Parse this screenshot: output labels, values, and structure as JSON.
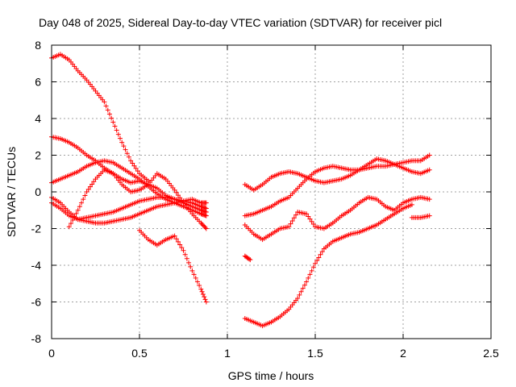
{
  "chart_data": {
    "type": "scatter",
    "title": "Day 048 of 2025, Sidereal Day-to-day VTEC variation (SDTVAR) for receiver picl",
    "xlabel": "GPS time / hours",
    "ylabel": "SDTVAR / TECUs",
    "xlim": [
      0,
      2.5
    ],
    "ylim": [
      -8,
      8
    ],
    "xticks": [
      0,
      0.5,
      1,
      1.5,
      2,
      2.5
    ],
    "xtick_labels": [
      "0",
      "0.5",
      "1",
      "1.5",
      "2",
      "2.5"
    ],
    "yticks": [
      -8,
      -6,
      -4,
      -2,
      0,
      2,
      4,
      6,
      8
    ],
    "ytick_labels": [
      "-8",
      "-6",
      "-4",
      "-2",
      "0",
      "2",
      "4",
      "6",
      "8"
    ],
    "grid": true,
    "marker": "plus",
    "marker_color": "#ff0000",
    "series": [
      {
        "name": "s1",
        "x": [
          0.0,
          0.05,
          0.1,
          0.15,
          0.2,
          0.25,
          0.3,
          0.35,
          0.4,
          0.45,
          0.5,
          0.55
        ],
        "y": [
          7.3,
          7.5,
          7.2,
          6.6,
          6.1,
          5.5,
          4.9,
          3.8,
          2.7,
          1.7,
          1.0,
          0.6
        ]
      },
      {
        "name": "s2",
        "x": [
          0.0,
          0.05,
          0.1,
          0.15,
          0.2,
          0.25,
          0.3,
          0.35,
          0.4,
          0.45,
          0.5,
          0.55,
          0.6,
          0.65,
          0.7,
          0.75,
          0.8,
          0.85,
          0.88
        ],
        "y": [
          3.0,
          2.9,
          2.7,
          2.4,
          2.0,
          1.7,
          1.3,
          1.0,
          0.7,
          0.5,
          0.6,
          0.4,
          0.2,
          -0.2,
          -0.4,
          -0.6,
          -0.8,
          -1.0,
          -1.1
        ]
      },
      {
        "name": "s3",
        "x": [
          0.0,
          0.05,
          0.1,
          0.15,
          0.2,
          0.25,
          0.3,
          0.35,
          0.4,
          0.45,
          0.5,
          0.55,
          0.6,
          0.65,
          0.7,
          0.75,
          0.8,
          0.85,
          0.88
        ],
        "y": [
          0.5,
          0.7,
          0.9,
          1.1,
          1.4,
          1.6,
          1.7,
          1.6,
          1.3,
          1.0,
          0.7,
          0.3,
          -0.1,
          -0.4,
          -0.6,
          -0.8,
          -1.0,
          -1.2,
          -1.3
        ]
      },
      {
        "name": "s4",
        "x": [
          0.0,
          0.05,
          0.1,
          0.15,
          0.2,
          0.25,
          0.3,
          0.35,
          0.4,
          0.45,
          0.5,
          0.55,
          0.6,
          0.65,
          0.7,
          0.75,
          0.8,
          0.85,
          0.88
        ],
        "y": [
          -0.3,
          -0.6,
          -1.1,
          -1.5,
          -1.6,
          -1.7,
          -1.7,
          -1.6,
          -1.5,
          -1.4,
          -1.2,
          -1.0,
          -0.8,
          -0.7,
          -0.6,
          -0.5,
          -0.6,
          -0.8,
          -0.9
        ]
      },
      {
        "name": "s5",
        "x": [
          0.0,
          0.05,
          0.1,
          0.15,
          0.2,
          0.25,
          0.3,
          0.35,
          0.4,
          0.45,
          0.5,
          0.55,
          0.6,
          0.65,
          0.7,
          0.75,
          0.8,
          0.85,
          0.88
        ],
        "y": [
          -0.6,
          -0.9,
          -1.3,
          -1.5,
          -1.4,
          -1.3,
          -1.2,
          -1.1,
          -0.9,
          -0.7,
          -0.5,
          -0.4,
          -0.3,
          -0.3,
          -0.4,
          -0.5,
          -0.4,
          -0.6,
          -0.6
        ]
      },
      {
        "name": "s6",
        "x": [
          0.1,
          0.15,
          0.2,
          0.25,
          0.3,
          0.35,
          0.4,
          0.45,
          0.5,
          0.55,
          0.6,
          0.65,
          0.7,
          0.75,
          0.8,
          0.85,
          0.88
        ],
        "y": [
          -1.9,
          -1.0,
          0.0,
          0.7,
          1.2,
          1.0,
          0.4,
          0.0,
          0.1,
          0.4,
          1.0,
          0.7,
          0.1,
          -0.6,
          -1.2,
          -1.7,
          -2.0
        ]
      },
      {
        "name": "s7",
        "x": [
          0.5,
          0.55,
          0.6,
          0.65,
          0.7,
          0.75,
          0.8,
          0.85,
          0.88
        ],
        "y": [
          -2.1,
          -2.6,
          -2.9,
          -2.6,
          -2.4,
          -3.2,
          -4.3,
          -5.3,
          -6.0
        ]
      },
      {
        "name": "s8",
        "x": [
          1.1,
          1.15,
          1.2,
          1.25,
          1.3,
          1.35,
          1.4,
          1.45,
          1.5,
          1.55,
          1.6,
          1.65,
          1.7,
          1.75,
          1.8,
          1.85,
          1.9,
          1.95,
          2.0,
          2.05,
          2.1,
          2.15
        ],
        "y": [
          0.4,
          0.1,
          0.4,
          0.8,
          1.0,
          1.1,
          1.0,
          0.8,
          0.6,
          0.5,
          0.6,
          0.7,
          0.9,
          1.2,
          1.5,
          1.8,
          1.7,
          1.5,
          1.3,
          1.1,
          1.0,
          1.2
        ]
      },
      {
        "name": "s9",
        "x": [
          1.1,
          1.15,
          1.2,
          1.25,
          1.3,
          1.35,
          1.4,
          1.45,
          1.5,
          1.55,
          1.6,
          1.65,
          1.7,
          1.75,
          1.8,
          1.85,
          1.9,
          1.95,
          2.0,
          2.05,
          2.1,
          2.15
        ],
        "y": [
          -1.3,
          -1.2,
          -1.0,
          -0.8,
          -0.5,
          -0.3,
          0.2,
          0.7,
          1.1,
          1.3,
          1.4,
          1.3,
          1.2,
          1.2,
          1.3,
          1.4,
          1.4,
          1.5,
          1.6,
          1.7,
          1.7,
          2.0
        ]
      },
      {
        "name": "s10",
        "x": [
          1.1,
          1.15,
          1.2,
          1.25,
          1.3,
          1.35,
          1.4,
          1.45,
          1.5,
          1.55,
          1.6,
          1.65,
          1.7,
          1.75,
          1.8,
          1.85,
          1.9,
          1.95,
          2.0,
          2.05
        ],
        "y": [
          -6.9,
          -7.1,
          -7.3,
          -7.1,
          -6.8,
          -6.4,
          -5.8,
          -4.9,
          -3.9,
          -3.1,
          -2.7,
          -2.5,
          -2.3,
          -2.2,
          -2.0,
          -1.8,
          -1.5,
          -1.2,
          -0.9,
          -0.7
        ]
      },
      {
        "name": "s11",
        "x": [
          1.1,
          1.15,
          1.2,
          1.25,
          1.3,
          1.35,
          1.4,
          1.45,
          1.5,
          1.55,
          1.6,
          1.65,
          1.7,
          1.75,
          1.8,
          1.85,
          1.9,
          1.95,
          2.0,
          2.05,
          2.1,
          2.15
        ],
        "y": [
          -1.8,
          -2.3,
          -2.6,
          -2.3,
          -2.0,
          -1.9,
          -1.1,
          -1.2,
          -1.9,
          -2.0,
          -1.7,
          -1.3,
          -1.0,
          -0.6,
          -0.3,
          -0.4,
          -0.8,
          -1.0,
          -0.6,
          -0.4,
          -0.3,
          -0.4
        ]
      },
      {
        "name": "s12",
        "x": [
          1.1,
          1.13
        ],
        "y": [
          -3.5,
          -3.7
        ]
      },
      {
        "name": "s13",
        "x": [
          2.05,
          2.1,
          2.15
        ],
        "y": [
          -1.4,
          -1.4,
          -1.3
        ]
      }
    ]
  }
}
